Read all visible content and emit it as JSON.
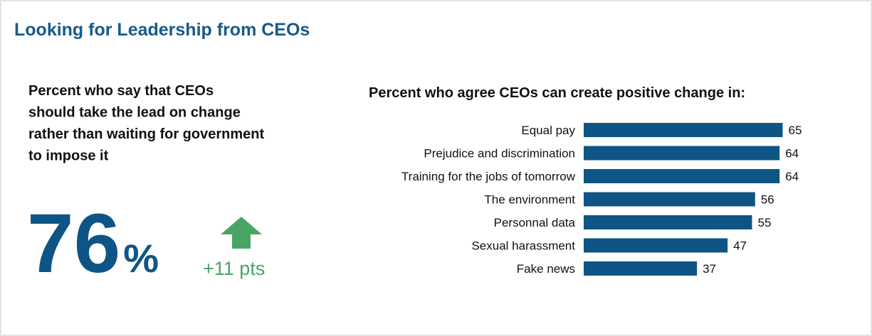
{
  "title": "Looking for Leadership from CEOs",
  "stat": {
    "label_lines": [
      "Percent who say that CEOs",
      "should take the lead on change",
      "rather than waiting for government",
      "to impose it"
    ],
    "value": 76,
    "unit": "%",
    "change": "+11 pts"
  },
  "chart_data": {
    "type": "hbar",
    "title": "Percent who agree CEOs can create positive change in:",
    "categories": [
      "Equal pay",
      "Prejudice and discrimination",
      "Training for the jobs of tomorrow",
      "The environment",
      "Personnal data",
      "Sexual harassment",
      "Fake news"
    ],
    "values": [
      65,
      64,
      64,
      56,
      55,
      47,
      37
    ],
    "color": "#0e5585",
    "xlim": [
      0,
      70
    ]
  }
}
